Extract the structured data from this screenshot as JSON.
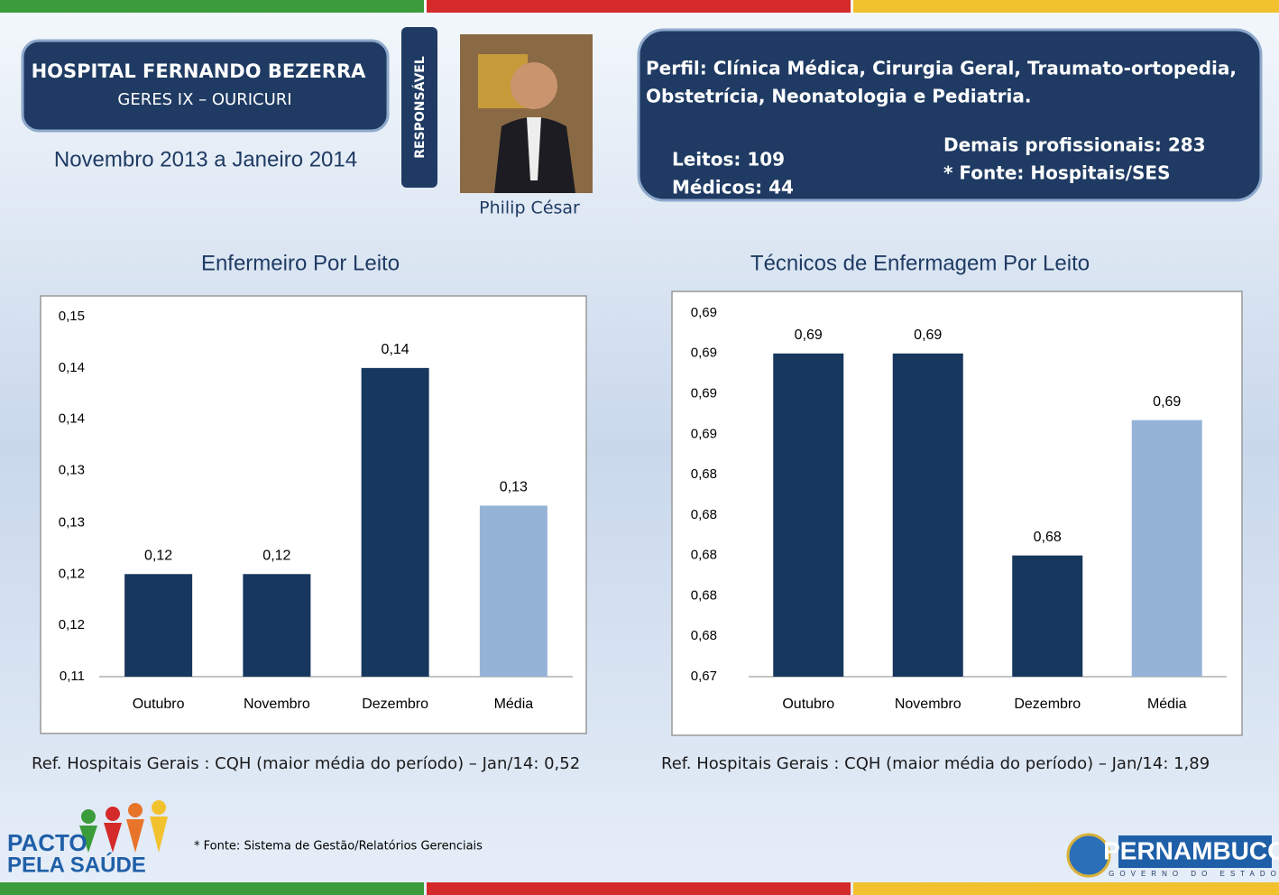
{
  "header": {
    "title": "HOSPITAL FERNANDO BEZERRA",
    "subtitle": "GERES IX – OURICURI",
    "period": "Novembro 2013 a Janeiro 2014",
    "responsible_label": "RESPONSÁVEL",
    "responsible_name": "Philip César"
  },
  "profile": {
    "specialties_line1": "Perfil: Clínica Médica, Cirurgia Geral, Traumato-ortopedia,",
    "specialties_line2": "Obstetrícia, Neonatologia e Pediatria.",
    "beds": "Leitos: 109",
    "doctors": "Médicos: 44",
    "other_staff": "Demais profissionais: 283",
    "source": "* Fonte: Hospitais/SES"
  },
  "chart_data": [
    {
      "type": "bar",
      "title": "Enfermeiro Por Leito",
      "categories": [
        "Outubro",
        "Novembro",
        "Dezembro",
        "Média"
      ],
      "values": [
        0.1214,
        0.1214,
        0.1443,
        0.129
      ],
      "value_labels": [
        "0,12",
        "0,12",
        "0,14",
        "0,13"
      ],
      "colors": [
        "#17375e",
        "#17375e",
        "#17375e",
        "#95b3d7"
      ],
      "ylim": [
        0.11,
        0.15
      ],
      "yticks": [
        {
          "value": 0.11,
          "label": "0,11"
        },
        {
          "value": 0.1157,
          "label": "0,12"
        },
        {
          "value": 0.1214,
          "label": "0,12"
        },
        {
          "value": 0.1271,
          "label": "0,13"
        },
        {
          "value": 0.1329,
          "label": "0,13"
        },
        {
          "value": 0.1386,
          "label": "0,14"
        },
        {
          "value": 0.1443,
          "label": "0,14"
        },
        {
          "value": 0.15,
          "label": "0,15"
        }
      ],
      "note": "Ref. Hospitais Gerais : CQH (maior média do período) – Jan/14: 0,52"
    },
    {
      "type": "bar",
      "title": "Técnicos de Enfermagem Por Leito",
      "categories": [
        "Outubro",
        "Novembro",
        "Dezembro",
        "Média"
      ],
      "values": [
        0.69,
        0.69,
        0.68,
        0.6867
      ],
      "value_labels": [
        "0,69",
        "0,69",
        "0,68",
        "0,69"
      ],
      "colors": [
        "#17375e",
        "#17375e",
        "#17375e",
        "#95b3d7"
      ],
      "ylim": [
        0.674,
        0.692
      ],
      "yticks": [
        {
          "value": 0.674,
          "label": "0,67"
        },
        {
          "value": 0.676,
          "label": "0,68"
        },
        {
          "value": 0.678,
          "label": "0,68"
        },
        {
          "value": 0.68,
          "label": "0,68"
        },
        {
          "value": 0.682,
          "label": "0,68"
        },
        {
          "value": 0.684,
          "label": "0,68"
        },
        {
          "value": 0.686,
          "label": "0,69"
        },
        {
          "value": 0.688,
          "label": "0,69"
        },
        {
          "value": 0.69,
          "label": "0,69"
        },
        {
          "value": 0.692,
          "label": "0,69"
        }
      ],
      "note": "Ref. Hospitais Gerais : CQH (maior média do período) – Jan/14: 1,89"
    }
  ],
  "footer": {
    "source": "* Fonte: Sistema de Gestão/Relatórios Gerenciais",
    "logo_left_1": "PACTO",
    "logo_left_2": "PELA SAÚDE",
    "logo_right": "PERNAMBUCO",
    "logo_right_sub": "GOVERNO DO ESTADO"
  }
}
